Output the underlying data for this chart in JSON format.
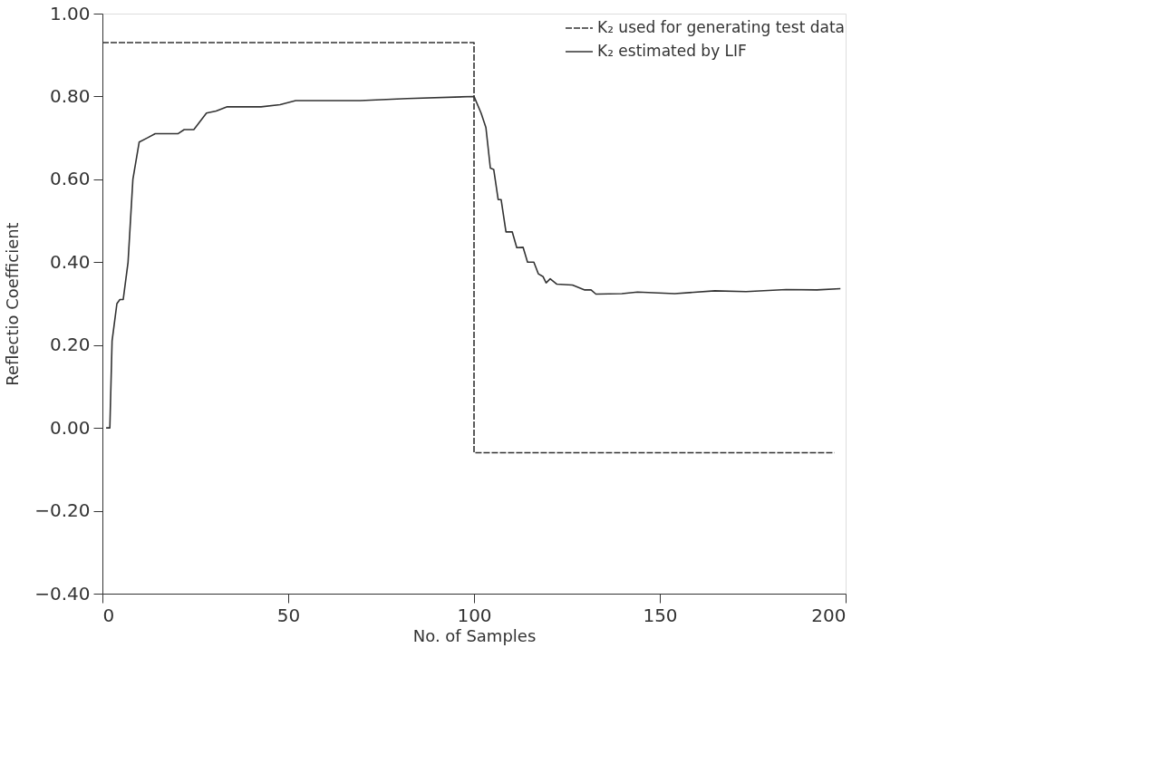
{
  "chart_data": {
    "type": "line",
    "xlabel": "No. of Samples",
    "ylabel": "Reflectio Coefficient",
    "xlim": [
      0,
      200
    ],
    "xticks": [
      0,
      50,
      100,
      150,
      200
    ],
    "ylim": [
      -0.4,
      1.0
    ],
    "yticks": [
      {
        "value": -0.4,
        "label": "−0.40"
      },
      {
        "value": -0.2,
        "label": "−0.20"
      },
      {
        "value": 0,
        "label": "0.00"
      },
      {
        "value": 0.2,
        "label": "0.20"
      },
      {
        "value": 0.4,
        "label": "0.40"
      },
      {
        "value": 0.6,
        "label": "0.60"
      },
      {
        "value": 0.8,
        "label": "0.80"
      },
      {
        "value": 1.0,
        "label": "1.00"
      }
    ],
    "grid": false,
    "legend": "top right",
    "marker": "none",
    "series": [
      {
        "name": "K₂ used for generating test data",
        "color": "#333333",
        "line_style": "dashed",
        "x": [
          0,
          100,
          100,
          197
        ],
        "values": [
          0.93,
          0.93,
          -0.06,
          -0.06
        ]
      },
      {
        "name": "K₂ estimated by LIF",
        "color": "#333333",
        "line_style": "solid",
        "x": [
          1,
          2,
          2.6,
          3.9,
          4.7,
          5.6,
          6.9,
          8.2,
          9.9,
          12.1,
          14.2,
          20.3,
          22,
          24.6,
          28,
          30.6,
          33.6,
          42.7,
          47.8,
          52,
          69.4,
          82,
          100,
          101.9,
          103.2,
          104.4,
          105.3,
          106.5,
          107.3,
          108.6,
          110.3,
          111.5,
          113.2,
          114.4,
          116.1,
          117.3,
          118.6,
          119.4,
          120.5,
          122.3,
          126.5,
          129.8,
          131.5,
          132.8,
          139.8,
          144,
          154,
          164.8,
          173.2,
          184,
          192.3,
          198.6
        ],
        "values": [
          0,
          0,
          0.21,
          0.3,
          0.31,
          0.31,
          0.4,
          0.6,
          0.69,
          0.7,
          0.71,
          0.71,
          0.72,
          0.72,
          0.76,
          0.765,
          0.775,
          0.775,
          0.78,
          0.79,
          0.79,
          0.795,
          0.8,
          0.76,
          0.725,
          0.627,
          0.624,
          0.551,
          0.551,
          0.473,
          0.473,
          0.435,
          0.436,
          0.4,
          0.4,
          0.372,
          0.365,
          0.35,
          0.36,
          0.347,
          0.345,
          0.333,
          0.333,
          0.323,
          0.324,
          0.328,
          0.324,
          0.331,
          0.329,
          0.334,
          0.333,
          0.336
        ]
      }
    ]
  }
}
